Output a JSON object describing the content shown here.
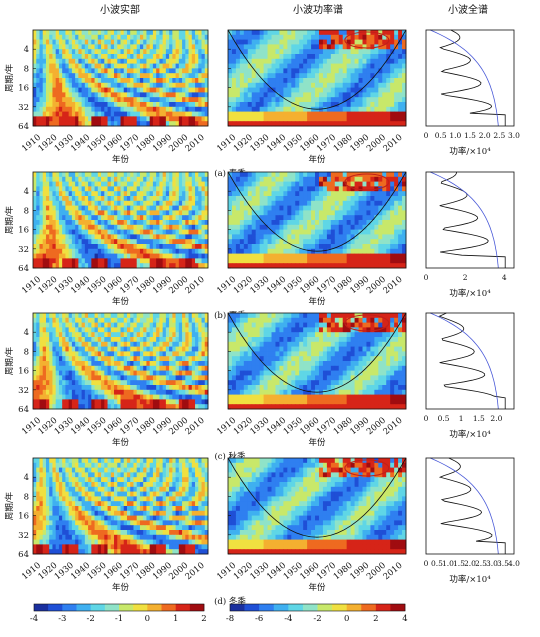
{
  "header": {
    "titles": [
      "小波实部",
      "小波功率谱",
      "小波全谱"
    ]
  },
  "axes": {
    "x_ticks": [
      "1910",
      "1920",
      "1930",
      "1940",
      "1950",
      "1960",
      "1970",
      "1980",
      "1990",
      "2000",
      "2010"
    ],
    "y_ticks": [
      "4",
      "8",
      "16",
      "32",
      "64"
    ],
    "x_label": "年份",
    "y_label": "周期/年"
  },
  "colorbars": [
    {
      "ticks": [
        "-4",
        "-3",
        "-2",
        "-1",
        "0",
        "1",
        "2"
      ]
    },
    {
      "ticks": [
        "-8",
        "-6",
        "-4",
        "-2",
        "0",
        "2",
        "4"
      ]
    }
  ],
  "chart_data": [
    {
      "type": "heatmap",
      "name": "小波实部",
      "panel": "(a) 春季",
      "x_range": [
        1905,
        2012
      ],
      "y_range": [
        2,
        64
      ],
      "y_scale": "log2",
      "x_label": "年份",
      "y_label": "周期/年",
      "colorbar_range": [
        -4,
        2
      ]
    },
    {
      "type": "heatmap",
      "name": "小波功率谱",
      "panel": "(a) 春季",
      "x_range": [
        1905,
        2012
      ],
      "y_range": [
        2,
        64
      ],
      "y_scale": "log2",
      "x_label": "年份",
      "colorbar_range": [
        -8,
        4
      ],
      "cone_of_influence": true
    },
    {
      "type": "line",
      "name": "小波全谱",
      "panel": "(a) 春季",
      "x_label": "功率/×10⁴",
      "x_ticks": [
        "0",
        "0.5",
        "1.0",
        "1.5",
        "2.0",
        "2.5",
        "3.0"
      ],
      "xlim": [
        0,
        3.0
      ],
      "y_range": [
        2,
        64
      ],
      "y_scale": "log2"
    },
    {
      "type": "heatmap",
      "name": "小波实部",
      "panel": "(b) 夏季",
      "x_range": [
        1905,
        2012
      ],
      "y_range": [
        2,
        64
      ],
      "y_scale": "log2",
      "y_label": "周期/年",
      "x_label": "年份",
      "colorbar_range": [
        -4,
        2
      ]
    },
    {
      "type": "heatmap",
      "name": "小波功率谱",
      "panel": "(b) 夏季",
      "x_range": [
        1905,
        2012
      ],
      "y_range": [
        2,
        64
      ],
      "y_scale": "log2",
      "x_label": "年份",
      "colorbar_range": [
        -8,
        4
      ],
      "cone_of_influence": true
    },
    {
      "type": "line",
      "name": "小波全谱",
      "panel": "(b) 夏季",
      "x_label": "功率/×10⁴",
      "x_ticks": [
        "0",
        "2",
        "4"
      ],
      "xlim": [
        0,
        4.5
      ],
      "y_range": [
        2,
        64
      ],
      "y_scale": "log2"
    },
    {
      "type": "heatmap",
      "name": "小波实部",
      "panel": "(c) 秋季",
      "x_range": [
        1905,
        2012
      ],
      "y_range": [
        2,
        64
      ],
      "y_scale": "log2",
      "y_label": "周期/年",
      "x_label": "年份",
      "colorbar_range": [
        -4,
        2
      ]
    },
    {
      "type": "heatmap",
      "name": "小波功率谱",
      "panel": "(c) 秋季",
      "x_range": [
        1905,
        2012
      ],
      "y_range": [
        2,
        64
      ],
      "y_scale": "log2",
      "x_label": "年份",
      "colorbar_range": [
        -8,
        4
      ],
      "cone_of_influence": true
    },
    {
      "type": "line",
      "name": "小波全谱",
      "panel": "(c) 秋季",
      "x_label": "功率/×10⁴",
      "x_ticks": [
        "0",
        "0.5",
        "1",
        "1.5",
        "2.0"
      ],
      "xlim": [
        0,
        2.5
      ],
      "y_range": [
        2,
        64
      ],
      "y_scale": "log2"
    },
    {
      "type": "heatmap",
      "name": "小波实部",
      "panel": "(d) 冬季",
      "x_range": [
        1905,
        2012
      ],
      "y_range": [
        2,
        64
      ],
      "y_scale": "log2",
      "y_label": "周期/年",
      "x_label": "年份",
      "colorbar_range": [
        -4,
        2
      ]
    },
    {
      "type": "heatmap",
      "name": "小波功率谱",
      "panel": "(d) 冬季",
      "x_range": [
        1905,
        2012
      ],
      "y_range": [
        2,
        64
      ],
      "y_scale": "log2",
      "x_label": "年份",
      "colorbar_range": [
        -8,
        4
      ],
      "cone_of_influence": true
    },
    {
      "type": "line",
      "name": "小波全谱",
      "panel": "(d) 冬季",
      "x_label": "功率/×10⁴",
      "x_ticks": [
        "0",
        "0.5",
        "1.0",
        "1.5",
        "2.0",
        "2.5",
        "3.0",
        "3.5",
        "4.0"
      ],
      "xlim": [
        0,
        4.0
      ],
      "y_range": [
        2,
        64
      ],
      "y_scale": "log2"
    }
  ]
}
